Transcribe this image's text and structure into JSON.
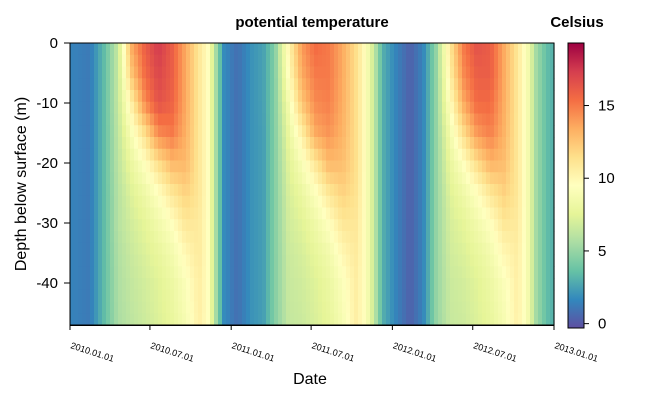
{
  "chart_data": {
    "type": "heatmap",
    "title": "potential temperature",
    "xlabel": "Date",
    "ylabel": "Depth below surface (m)",
    "colorbar_label": "Celsius",
    "x_ticks": [
      "2010.01.01",
      "2010.07.01",
      "2011.01.01",
      "2011.07.01",
      "2012.01.01",
      "2012.07.01",
      "2013.01.01"
    ],
    "x_range": [
      "2010-01-01",
      "2013-01-01"
    ],
    "y_ticks": [
      0,
      -10,
      -20,
      -30,
      -40
    ],
    "ylim": [
      -47,
      0
    ],
    "colorbar_ticks": [
      0,
      5,
      10,
      15
    ],
    "colorbar_range": [
      -0.3,
      19.3
    ],
    "colormap": [
      "#5e4fa2",
      "#3288bd",
      "#66c2a5",
      "#abdda4",
      "#e6f598",
      "#ffffbf",
      "#fee08b",
      "#fdae61",
      "#f46d43",
      "#d53e4f",
      "#9e0142"
    ],
    "depths": [
      0,
      -5,
      -10,
      -15,
      -20,
      -25,
      -30,
      -35,
      -40,
      -47
    ],
    "series": [
      {
        "date": "2010-01-01",
        "values": [
          1.5,
          1.5,
          1.5,
          1.5,
          1.5,
          1.5,
          1.5,
          1.5,
          1.5,
          1.5
        ]
      },
      {
        "date": "2010-02-15",
        "values": [
          1.2,
          1.2,
          1.2,
          1.2,
          1.2,
          1.2,
          1.2,
          1.2,
          1.2,
          1.2
        ]
      },
      {
        "date": "2010-03-20",
        "values": [
          3.5,
          3.5,
          3.5,
          3.5,
          3.5,
          3.5,
          3.5,
          3.5,
          3.5,
          3.5
        ]
      },
      {
        "date": "2010-04-20",
        "values": [
          6.5,
          6.5,
          6.5,
          6.3,
          6.2,
          6.0,
          6.0,
          5.8,
          5.7,
          5.6
        ]
      },
      {
        "date": "2010-05-20",
        "values": [
          13.5,
          12.5,
          10.5,
          9.0,
          8.0,
          7.3,
          6.9,
          6.6,
          6.4,
          6.2
        ]
      },
      {
        "date": "2010-06-20",
        "values": [
          16.0,
          15.5,
          14.5,
          11.5,
          9.5,
          8.3,
          7.6,
          7.2,
          6.9,
          6.7
        ]
      },
      {
        "date": "2010-07-20",
        "values": [
          17.5,
          17.0,
          16.5,
          14.5,
          11.5,
          9.5,
          8.5,
          7.8,
          7.4,
          7.2
        ]
      },
      {
        "date": "2010-08-20",
        "values": [
          16.0,
          16.0,
          15.8,
          15.0,
          13.0,
          11.0,
          9.5,
          8.6,
          8.1,
          7.8
        ]
      },
      {
        "date": "2010-09-20",
        "values": [
          13.5,
          13.5,
          13.5,
          13.3,
          13.0,
          12.0,
          11.0,
          10.0,
          9.2,
          8.8
        ]
      },
      {
        "date": "2010-10-20",
        "values": [
          11.0,
          11.0,
          11.0,
          11.0,
          11.0,
          11.0,
          10.8,
          10.8,
          10.6,
          10.5
        ]
      },
      {
        "date": "2010-11-10",
        "values": [
          9.5,
          9.5,
          9.5,
          9.5,
          9.5,
          9.5,
          9.5,
          9.5,
          9.5,
          9.5
        ]
      },
      {
        "date": "2010-11-25",
        "values": [
          6.0,
          6.0,
          6.0,
          6.0,
          6.0,
          6.0,
          6.0,
          6.0,
          6.0,
          6.0
        ]
      },
      {
        "date": "2010-12-15",
        "values": [
          1.8,
          1.8,
          1.8,
          1.8,
          1.8,
          1.8,
          1.8,
          1.8,
          1.8,
          1.8
        ]
      },
      {
        "date": "2011-01-15",
        "values": [
          0.8,
          0.8,
          0.8,
          0.8,
          0.8,
          0.8,
          0.8,
          0.8,
          0.8,
          0.8
        ]
      },
      {
        "date": "2011-02-15",
        "values": [
          2.0,
          2.0,
          2.0,
          2.0,
          2.0,
          2.0,
          2.0,
          2.0,
          2.0,
          2.0
        ]
      },
      {
        "date": "2011-03-15",
        "values": [
          2.5,
          2.5,
          2.5,
          2.4,
          2.4,
          2.4,
          2.4,
          2.4,
          2.4,
          2.4
        ]
      },
      {
        "date": "2011-04-10",
        "values": [
          4.5,
          4.5,
          4.5,
          4.5,
          4.5,
          4.5,
          4.5,
          4.5,
          4.5,
          4.5
        ]
      },
      {
        "date": "2011-05-10",
        "values": [
          10.0,
          9.5,
          8.5,
          7.8,
          7.3,
          7.0,
          6.8,
          6.6,
          6.5,
          6.4
        ]
      },
      {
        "date": "2011-06-10",
        "values": [
          14.0,
          13.5,
          12.5,
          10.5,
          9.0,
          8.0,
          7.4,
          7.0,
          6.8,
          6.6
        ]
      },
      {
        "date": "2011-07-10",
        "values": [
          15.5,
          15.0,
          14.5,
          13.5,
          11.0,
          9.3,
          8.3,
          7.7,
          7.3,
          7.1
        ]
      },
      {
        "date": "2011-08-10",
        "values": [
          15.0,
          15.0,
          14.8,
          14.2,
          13.0,
          11.0,
          9.5,
          8.5,
          8.0,
          7.7
        ]
      },
      {
        "date": "2011-09-10",
        "values": [
          13.5,
          13.5,
          13.4,
          13.2,
          12.8,
          12.0,
          11.0,
          10.0,
          9.2,
          8.8
        ]
      },
      {
        "date": "2011-10-10",
        "values": [
          11.5,
          11.5,
          11.5,
          11.5,
          11.5,
          11.3,
          11.0,
          10.8,
          10.6,
          10.5
        ]
      },
      {
        "date": "2011-11-01",
        "values": [
          9.5,
          9.5,
          9.5,
          9.5,
          9.5,
          9.5,
          9.5,
          9.5,
          9.5,
          9.5
        ]
      },
      {
        "date": "2011-11-20",
        "values": [
          6.5,
          6.5,
          6.5,
          6.5,
          6.5,
          6.5,
          6.5,
          6.5,
          6.5,
          6.5
        ]
      },
      {
        "date": "2011-12-10",
        "values": [
          3.0,
          3.0,
          3.0,
          3.0,
          3.0,
          3.0,
          3.0,
          3.0,
          3.0,
          3.0
        ]
      },
      {
        "date": "2012-01-10",
        "values": [
          1.5,
          1.5,
          1.5,
          1.5,
          1.5,
          1.5,
          1.5,
          1.5,
          1.5,
          1.5
        ]
      },
      {
        "date": "2012-02-10",
        "values": [
          0.3,
          0.3,
          0.3,
          0.3,
          0.3,
          0.3,
          0.3,
          0.3,
          0.3,
          0.3
        ]
      },
      {
        "date": "2012-03-10",
        "values": [
          1.5,
          1.5,
          1.5,
          1.5,
          1.5,
          1.5,
          1.5,
          1.5,
          1.5,
          1.5
        ]
      },
      {
        "date": "2012-04-10",
        "values": [
          5.0,
          5.0,
          5.0,
          5.0,
          5.0,
          5.0,
          5.0,
          5.0,
          5.0,
          5.0
        ]
      },
      {
        "date": "2012-05-10",
        "values": [
          11.0,
          10.5,
          9.5,
          8.5,
          7.8,
          7.3,
          7.0,
          6.8,
          6.6,
          6.5
        ]
      },
      {
        "date": "2012-06-10",
        "values": [
          15.0,
          14.5,
          13.5,
          11.5,
          9.5,
          8.3,
          7.6,
          7.2,
          6.9,
          6.7
        ]
      },
      {
        "date": "2012-07-10",
        "values": [
          16.5,
          16.0,
          15.5,
          14.0,
          11.5,
          9.5,
          8.5,
          7.8,
          7.4,
          7.2
        ]
      },
      {
        "date": "2012-08-10",
        "values": [
          16.0,
          16.0,
          15.5,
          14.8,
          13.2,
          11.0,
          9.5,
          8.6,
          8.1,
          7.8
        ]
      },
      {
        "date": "2012-09-10",
        "values": [
          13.5,
          13.5,
          13.4,
          13.2,
          12.8,
          12.0,
          11.0,
          10.0,
          9.2,
          8.8
        ]
      },
      {
        "date": "2012-10-10",
        "values": [
          11.0,
          11.0,
          11.0,
          11.0,
          11.0,
          11.0,
          10.8,
          10.6,
          10.5,
          10.4
        ]
      },
      {
        "date": "2012-11-01",
        "values": [
          9.0,
          9.0,
          9.0,
          9.0,
          9.0,
          9.0,
          9.0,
          9.0,
          9.0,
          9.0
        ]
      },
      {
        "date": "2012-11-20",
        "values": [
          5.5,
          5.5,
          5.5,
          5.5,
          5.5,
          5.5,
          5.5,
          5.5,
          5.5,
          5.5
        ]
      },
      {
        "date": "2012-12-15",
        "values": [
          3.5,
          3.5,
          3.5,
          3.5,
          3.5,
          3.5,
          3.5,
          3.5,
          3.5,
          3.5
        ]
      },
      {
        "date": "2013-01-01",
        "values": [
          3.0,
          3.0,
          3.0,
          3.0,
          3.0,
          3.0,
          3.0,
          3.0,
          3.0,
          3.0
        ]
      }
    ]
  }
}
